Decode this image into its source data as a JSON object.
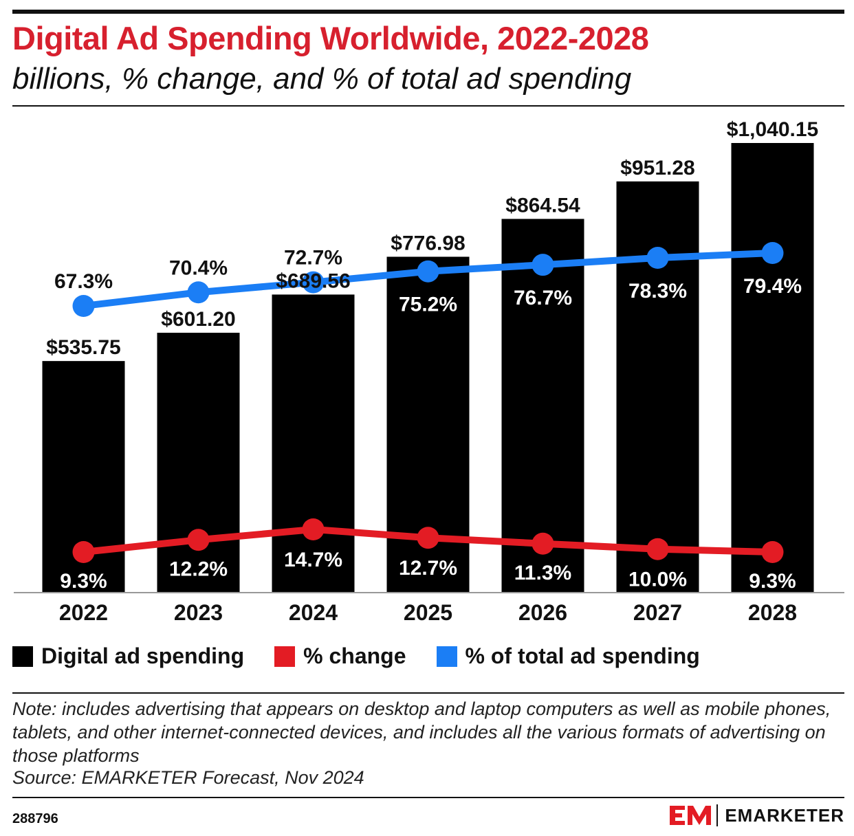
{
  "header": {
    "title": "Digital Ad Spending Worldwide, 2022-2028",
    "subtitle": "billions, % change, and % of total ad spending"
  },
  "chart_data": {
    "type": "bar",
    "categories": [
      "2022",
      "2023",
      "2024",
      "2025",
      "2026",
      "2027",
      "2028"
    ],
    "series": [
      {
        "name": "Digital ad spending",
        "kind": "bar",
        "color": "#000000",
        "values": [
          535.75,
          601.2,
          689.56,
          776.98,
          864.54,
          951.28,
          1040.15
        ],
        "labels": [
          "$535.75",
          "$601.20",
          "$689.56",
          "$776.98",
          "$864.54",
          "$951.28",
          "$1,040.15"
        ]
      },
      {
        "name": "% change",
        "kind": "line",
        "color": "#e31c24",
        "values": [
          9.3,
          12.2,
          14.7,
          12.7,
          11.3,
          10.0,
          9.3
        ],
        "labels": [
          "9.3%",
          "12.2%",
          "14.7%",
          "12.7%",
          "11.3%",
          "10.0%",
          "9.3%"
        ]
      },
      {
        "name": "% of total ad spending",
        "kind": "line",
        "color": "#1b7ef5",
        "values": [
          67.3,
          70.4,
          72.7,
          75.2,
          76.7,
          78.3,
          79.4
        ],
        "labels": [
          "67.3%",
          "70.4%",
          "72.7%",
          "75.2%",
          "76.7%",
          "78.3%",
          "79.4%"
        ]
      }
    ],
    "legend_position": "bottom-left",
    "grid": false
  },
  "legend": {
    "items": [
      {
        "label": "Digital ad spending",
        "color": "#000000"
      },
      {
        "label": "% change",
        "color": "#e31c24"
      },
      {
        "label": "% of total ad spending",
        "color": "#1b7ef5"
      }
    ]
  },
  "footer": {
    "note": "Note: includes advertising that appears on desktop and laptop computers as well as mobile phones, tablets, and other internet-connected devices, and includes all the various formats of advertising on those platforms",
    "source": "Source: EMARKETER Forecast, Nov 2024",
    "chart_id": "288796",
    "brand_name": "EMARKETER",
    "brand_color": "#e31c24"
  }
}
